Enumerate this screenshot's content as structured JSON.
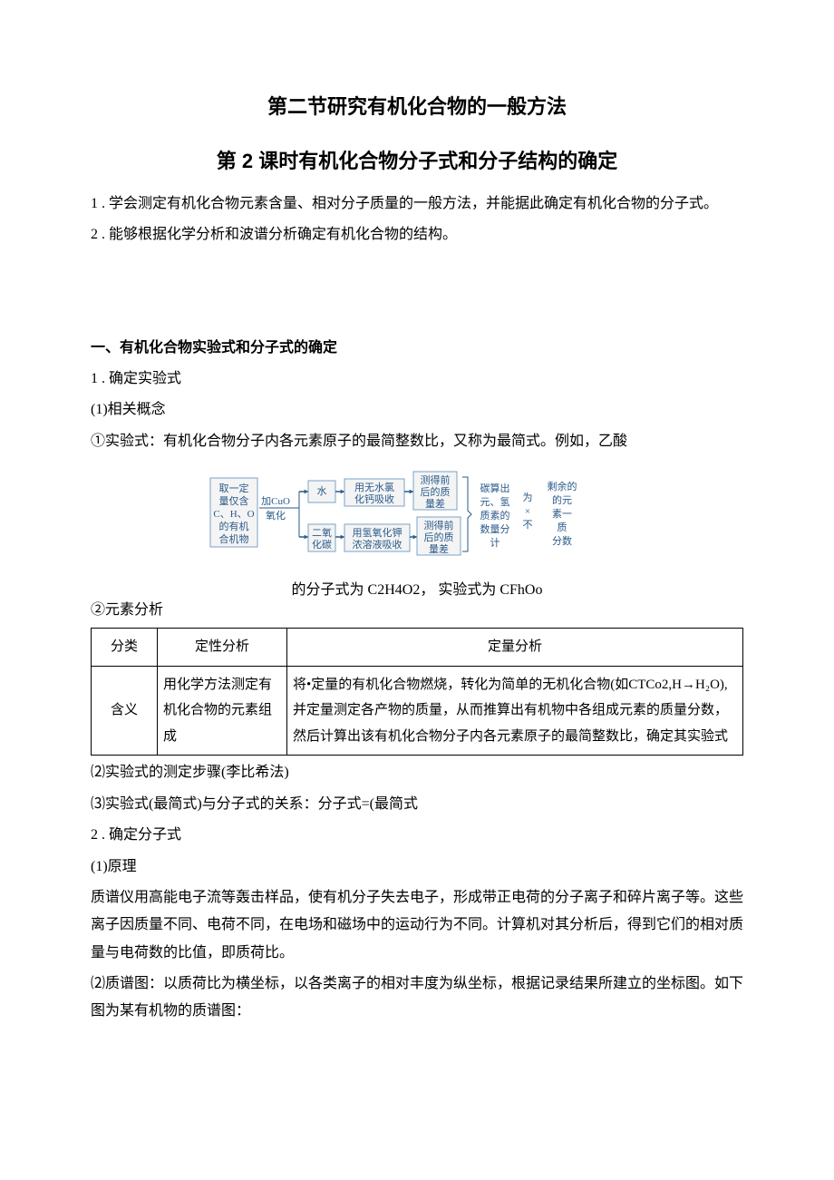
{
  "title_main": "第二节研究有机化合物的一般方法",
  "title_sub": "第 2 课时有机化合物分子式和分子结构的确定",
  "intro": {
    "p1": "1 . 学会测定有机化合物元素含量、相对分子质量的一般方法，并能据此确定有机化合物的分子式。",
    "p2": "2 . 能够根据化学分析和波谱分析确定有机化合物的结构。"
  },
  "section1": {
    "heading": "一、有机化合物实验式和分子式的确定",
    "item1": "1 . 确定实验式",
    "item1_1": "(1)相关概念",
    "item1_1_1": "①实验式：有机化合物分子内各元素原子的最简整数比，又称为最简式。例如，乙酸",
    "caption": "的分子式为 C2H4O2， 实验式为 CFhOo",
    "item1_1_2": "②元素分析",
    "table": {
      "head_cat": "分类",
      "head_qual": "定性分析",
      "head_quant": "定量分析",
      "row_cat": "含义",
      "row_qual": "用化学方法测定有机化合物的元素组成",
      "row_quant": "将•定量的有机化合物燃烧，转化为简单的无机化合物(如CTCo2,H→H₂O),并定量测定各产物的质量，从而推算出有机物中各组成元素的质量分数，然后计算出该有机化合物分子内各元素原子的最简整数比，确定其实验式"
    },
    "item1_2": "⑵实验式的测定步骤(李比希法)",
    "item1_3": "⑶实验式(最简式)与分子式的关系：分子式=(最简式",
    "item2": "2  . 确定分子式",
    "item2_1": "(1)原理",
    "item2_1_body": "质谱仪用高能电子流等轰击样品，使有机分子失去电子，形成带正电荷的分子离子和碎片离子等。这些离子因质量不同、电荷不同，在电场和磁场中的运动行为不同。计算机对其分析后，得到它们的相对质量与电荷数的比值，即质荷比。",
    "item2_2": "⑵质谱图：以质荷比为横坐标，以各类离子的相对丰度为纵坐标，根据记录结果所建立的坐标图。如下图为某有机物的质谱图："
  },
  "flowchart": {
    "colors": {
      "box_stroke": "#7aa3c9",
      "box_fill": "#f4f4f4",
      "text": "#2a5a8a",
      "arrow": "#2a5a8a",
      "bracket": "#2a5a8a"
    },
    "font_size": 11,
    "boxes": {
      "input": {
        "lines": [
          "取一定",
          "量仅含",
          "C、H、O",
          "的有机",
          "合机物"
        ]
      },
      "oxid": {
        "top": "加CuO",
        "bot": "氧化"
      },
      "water": {
        "lines": [
          "水"
        ]
      },
      "co2": {
        "lines": [
          "二氧",
          "化碳"
        ]
      },
      "caoh": {
        "lines": [
          "用无水氯",
          "化钙吸收"
        ]
      },
      "koh": {
        "lines": [
          "用氢氧化钾",
          "浓溶液吸收"
        ]
      },
      "mass1": {
        "lines": [
          "测得前",
          "后的质",
          "量差"
        ]
      },
      "mass2": {
        "lines": [
          "测得前",
          "后的质",
          "量差"
        ]
      },
      "calc": {
        "lines": [
          "碳算出",
          "元、氢",
          "质素的",
          "数量分",
          "计"
        ]
      },
      "times": {
        "lines": [
          "为",
          "×",
          "不"
        ]
      },
      "remain": {
        "lines": [
          "剩余的",
          "的元",
          "素一",
          "质",
          "分数"
        ]
      }
    }
  }
}
